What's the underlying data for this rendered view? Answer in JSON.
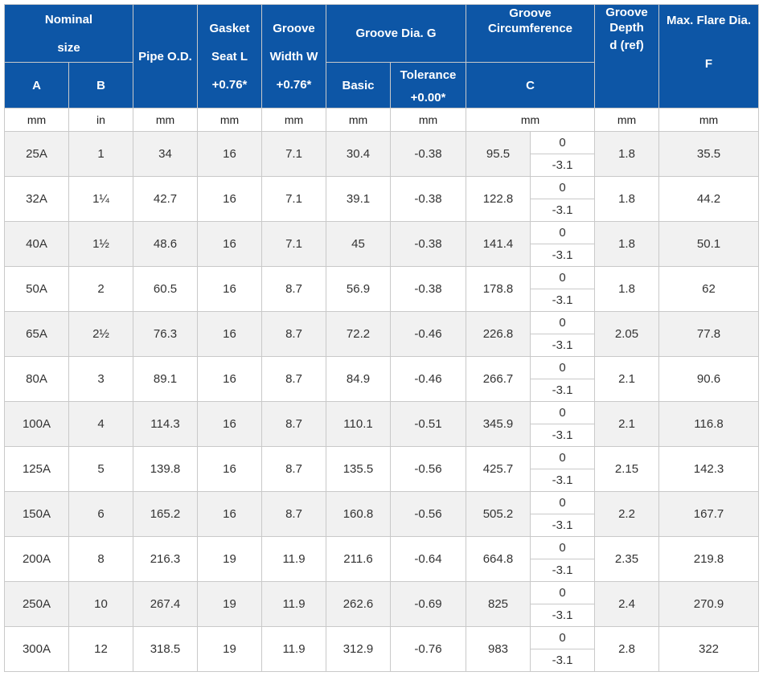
{
  "headers": {
    "nominal": [
      "Nominal",
      "size"
    ],
    "a": "A",
    "b": "B",
    "pipe_od": "Pipe O.D.",
    "gasket": [
      "Gasket",
      "Seat L",
      "+0.76*"
    ],
    "groove_width": [
      "Groove",
      "Width W",
      "+0.76*"
    ],
    "groove_dia": "Groove Dia. G",
    "basic": "Basic",
    "tolerance": [
      "Tolerance",
      "+0.00*"
    ],
    "groove_circ": [
      "Groove",
      "Circumference"
    ],
    "c": "C",
    "groove_depth": [
      "Groove",
      "Depth",
      "d (ref)"
    ],
    "max_flare": "Max. Flare Dia.",
    "f": "F"
  },
  "units": [
    "mm",
    "in",
    "mm",
    "mm",
    "mm",
    "mm",
    "mm",
    "mm",
    "mm",
    "mm"
  ],
  "colors": {
    "header_bg": "#0d56a6",
    "header_text": "#ffffff",
    "row_alt": "#f1f1f1"
  },
  "rows": [
    {
      "a": "25A",
      "b": "1",
      "od": "34",
      "l": "16",
      "w": "7.1",
      "g": "30.4",
      "tol": "-0.38",
      "c": "95.5",
      "c_plus": "0",
      "c_minus": "-3.1",
      "d": "1.8",
      "f": "35.5"
    },
    {
      "a": "32A",
      "b": "1¼",
      "od": "42.7",
      "l": "16",
      "w": "7.1",
      "g": "39.1",
      "tol": "-0.38",
      "c": "122.8",
      "c_plus": "0",
      "c_minus": "-3.1",
      "d": "1.8",
      "f": "44.2"
    },
    {
      "a": "40A",
      "b": "1½",
      "od": "48.6",
      "l": "16",
      "w": "7.1",
      "g": "45",
      "tol": "-0.38",
      "c": "141.4",
      "c_plus": "0",
      "c_minus": "-3.1",
      "d": "1.8",
      "f": "50.1"
    },
    {
      "a": "50A",
      "b": "2",
      "od": "60.5",
      "l": "16",
      "w": "8.7",
      "g": "56.9",
      "tol": "-0.38",
      "c": "178.8",
      "c_plus": "0",
      "c_minus": "-3.1",
      "d": "1.8",
      "f": "62"
    },
    {
      "a": "65A",
      "b": "2½",
      "od": "76.3",
      "l": "16",
      "w": "8.7",
      "g": "72.2",
      "tol": "-0.46",
      "c": "226.8",
      "c_plus": "0",
      "c_minus": "-3.1",
      "d": "2.05",
      "f": "77.8"
    },
    {
      "a": "80A",
      "b": "3",
      "od": "89.1",
      "l": "16",
      "w": "8.7",
      "g": "84.9",
      "tol": "-0.46",
      "c": "266.7",
      "c_plus": "0",
      "c_minus": "-3.1",
      "d": "2.1",
      "f": "90.6"
    },
    {
      "a": "100A",
      "b": "4",
      "od": "114.3",
      "l": "16",
      "w": "8.7",
      "g": "110.1",
      "tol": "-0.51",
      "c": "345.9",
      "c_plus": "0",
      "c_minus": "-3.1",
      "d": "2.1",
      "f": "116.8"
    },
    {
      "a": "125A",
      "b": "5",
      "od": "139.8",
      "l": "16",
      "w": "8.7",
      "g": "135.5",
      "tol": "-0.56",
      "c": "425.7",
      "c_plus": "0",
      "c_minus": "-3.1",
      "d": "2.15",
      "f": "142.3"
    },
    {
      "a": "150A",
      "b": "6",
      "od": "165.2",
      "l": "16",
      "w": "8.7",
      "g": "160.8",
      "tol": "-0.56",
      "c": "505.2",
      "c_plus": "0",
      "c_minus": "-3.1",
      "d": "2.2",
      "f": "167.7"
    },
    {
      "a": "200A",
      "b": "8",
      "od": "216.3",
      "l": "19",
      "w": "11.9",
      "g": "211.6",
      "tol": "-0.64",
      "c": "664.8",
      "c_plus": "0",
      "c_minus": "-3.1",
      "d": "2.35",
      "f": "219.8"
    },
    {
      "a": "250A",
      "b": "10",
      "od": "267.4",
      "l": "19",
      "w": "11.9",
      "g": "262.6",
      "tol": "-0.69",
      "c": "825",
      "c_plus": "0",
      "c_minus": "-3.1",
      "d": "2.4",
      "f": "270.9"
    },
    {
      "a": "300A",
      "b": "12",
      "od": "318.5",
      "l": "19",
      "w": "11.9",
      "g": "312.9",
      "tol": "-0.76",
      "c": "983",
      "c_plus": "0",
      "c_minus": "-3.1",
      "d": "2.8",
      "f": "322"
    }
  ]
}
